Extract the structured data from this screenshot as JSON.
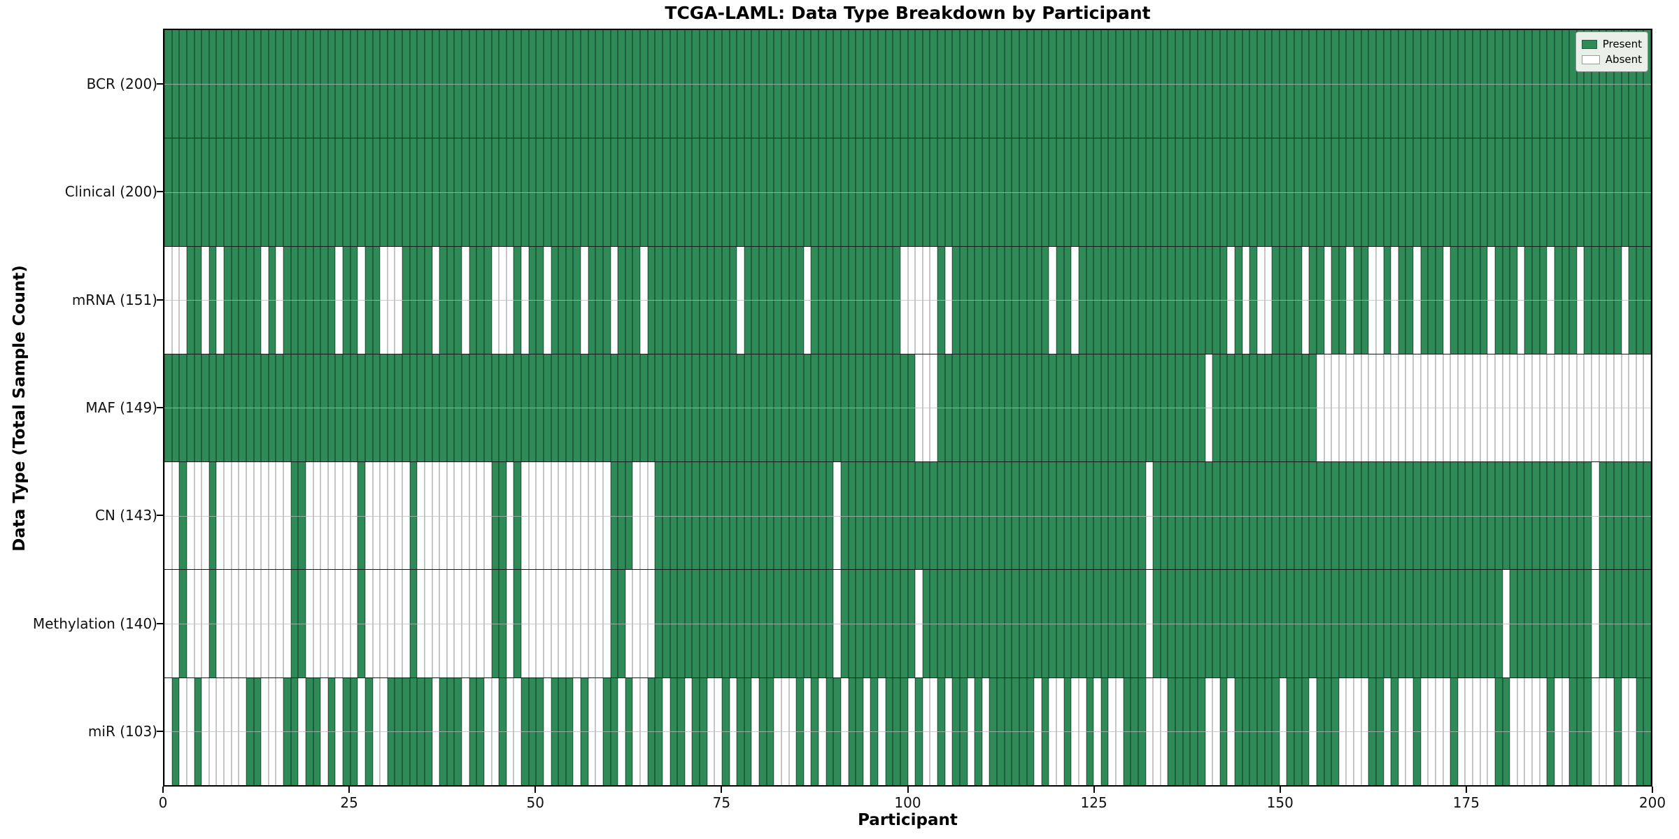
{
  "title": "TCGA-LAML: Data Type Breakdown by Participant",
  "xlabel": "Participant",
  "ylabel": "Data Type (Total Sample Count)",
  "legend": {
    "present_label": "Present",
    "absent_label": "Absent"
  },
  "colors": {
    "present": "#2E8B57",
    "present_edge": "#1e5e3c",
    "absent": "#ffffff",
    "absent_edge": "#c6c6c6",
    "legend_bg": "#e9efe9"
  },
  "x_ticks": [
    0,
    25,
    50,
    75,
    100,
    125,
    150,
    175,
    200
  ],
  "chart_data": {
    "type": "heatmap",
    "x_axis": "Participant index 0-200",
    "n_participants": 200,
    "cell_states": {
      "1": "Present",
      "0": "Absent"
    },
    "rows": [
      {
        "label": "BCR (200)",
        "name": "BCR",
        "present_count": 200,
        "pattern": "11111111111111111111111111111111111111111111111111111111111111111111111111111111111111111111111111111111111111111111111111111111111111111111111111111111111111111111111111111111111111111111111111111111"
      },
      {
        "label": "Clinical (200)",
        "name": "Clinical",
        "present_count": 200,
        "pattern": "11111111111111111111111111111111111111111111111111111111111111111111111111111111111111111111111111111111111111111111111111111111111111111111111111111111111111111111111111111111111111111111111111111111"
      },
      {
        "label": "mRNA (151)",
        "name": "mRNA",
        "present_count": 151,
        "pattern": "00011010111110101111111011011000111101110111000101101111011101110111111111111011111111011111111111100000101111111111111011011111111111111111111010100111101101101100101101110111110111011101110111110111"
      },
      {
        "label": "MAF (149)",
        "name": "MAF",
        "present_count": 149,
        "pattern": "11111111111111111111111111111111111111111111111111111111111111111111111111111111111111111111111111111000111111111111111111111111111111111111011111111111111000000000000000000000000000000000000000000000"
      },
      {
        "label": "CN (143)",
        "name": "CN",
        "present_count": 143,
        "pattern": "00100010000000000110000000100000010000000000110100000000000011100011111111111111111111111101111111111111111111111111111111111111111101111111111111111111111111111111111111111111111111111111111101111111"
      },
      {
        "label": "Methylation (140)",
        "name": "Methylation",
        "present_count": 140,
        "pattern": "00100010000000000110000000100000010000000000110100000000000011000011111111111111111111111101111111111011111111111111111111111111111101111111111111111111111111111111111111111111111101111111111101111111"
      },
      {
        "label": "miR (103)",
        "name": "miR",
        "present_count": 103,
        "pattern": "01001000000110001101101011010011111101110110010011101110100110100110110110010110110001010110110101110100101101011111101001001010011100011111001011111101110111000011010010000100000110000010011100010011"
      }
    ]
  }
}
